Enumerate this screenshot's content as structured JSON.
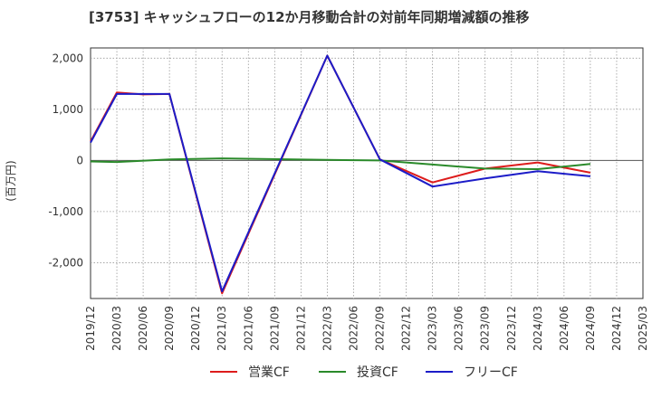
{
  "chart_data": {
    "type": "line",
    "title": "[3753]  キャッシュフローの12か月移動合計の対前年同期増減額の推移",
    "ylabel": "(百万円)",
    "xlabel": "",
    "ylim": [
      -2700,
      2200
    ],
    "yticks": [
      2000,
      1000,
      0,
      -1000,
      -2000
    ],
    "ytick_labels": [
      "2,000",
      "1,000",
      "0",
      "-1,000",
      "-2,000"
    ],
    "categories": [
      "2019/12",
      "2020/03",
      "2020/06",
      "2020/09",
      "2020/12",
      "2021/03",
      "2021/06",
      "2021/09",
      "2021/12",
      "2022/03",
      "2022/06",
      "2022/09",
      "2022/12",
      "2023/03",
      "2023/06",
      "2023/09",
      "2023/12",
      "2024/03",
      "2024/06",
      "2024/09",
      "2024/12",
      "2025/03"
    ],
    "grid": true,
    "legend_position": "bottom",
    "series": [
      {
        "name": "営業CF",
        "color": "#dd1c1c",
        "values": [
          370,
          1330,
          1290,
          1300,
          null,
          -2600,
          null,
          null,
          null,
          2050,
          null,
          20,
          null,
          -430,
          null,
          -160,
          null,
          -40,
          null,
          -240,
          null,
          null
        ]
      },
      {
        "name": "投資CF",
        "color": "#2a8a2a",
        "values": [
          -20,
          -30,
          null,
          20,
          null,
          40,
          null,
          null,
          null,
          10,
          null,
          0,
          null,
          -80,
          null,
          -160,
          null,
          -170,
          null,
          -70,
          null,
          null
        ]
      },
      {
        "name": "フリーCF",
        "color": "#1c1cc8",
        "values": [
          350,
          1300,
          1300,
          1300,
          null,
          -2560,
          null,
          null,
          null,
          2050,
          null,
          20,
          null,
          -510,
          null,
          -350,
          null,
          -210,
          null,
          -310,
          null,
          null
        ]
      }
    ]
  }
}
